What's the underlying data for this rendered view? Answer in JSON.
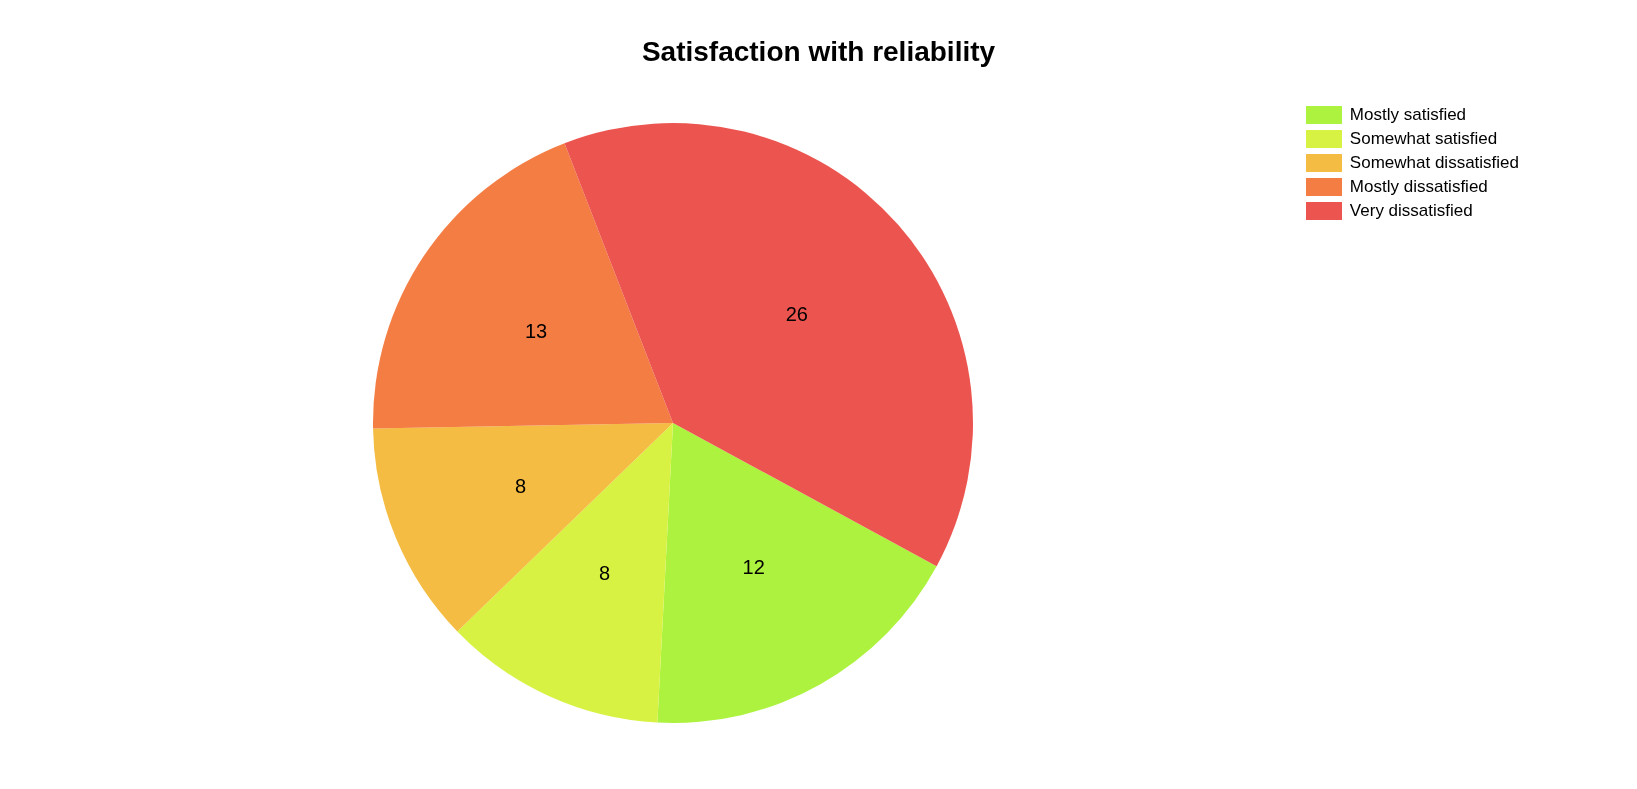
{
  "chart_data": {
    "type": "pie",
    "title": "Satisfaction with reliability",
    "categories": [
      "Mostly satisfied",
      "Somewhat satisfied",
      "Somewhat dissatisfied",
      "Mostly dissatisfied",
      "Very dissatisfied"
    ],
    "values": [
      12,
      8,
      8,
      13,
      26
    ],
    "colors": [
      "#aef240",
      "#d8f244",
      "#f4bc42",
      "#f47d43",
      "#ec554f"
    ],
    "data_labels": true,
    "legend": "top right"
  }
}
